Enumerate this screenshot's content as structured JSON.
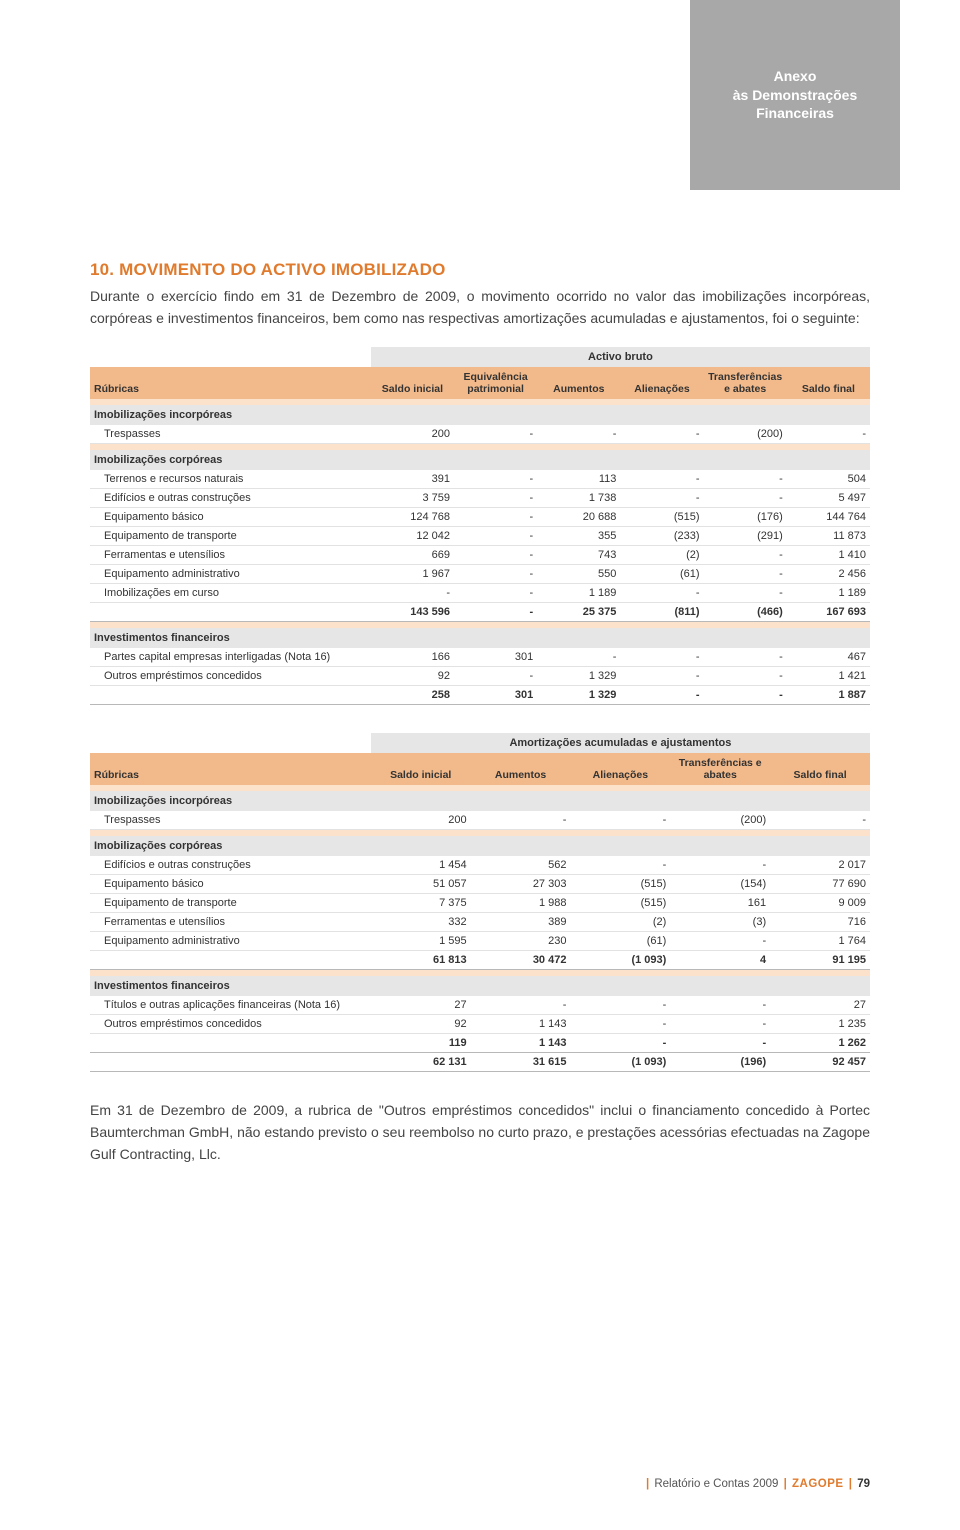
{
  "header": {
    "line1": "Anexo",
    "line2": "às Demonstrações",
    "line3": "Financeiras"
  },
  "section": {
    "title": "10. MOVIMENTO DO ACTIVO IMOBILIZADO",
    "intro": "Durante o exercício findo em 31 de Dezembro de 2009, o movimento ocorrido no valor das imobilizações incorpóreas, corpóreas e investimentos financeiros, bem como nas respectivas amortizações acumuladas e ajustamentos, foi o seguinte:"
  },
  "table1": {
    "banner": "Activo bruto",
    "columns": [
      "Rúbricas",
      "Saldo inicial",
      "Equivalência patrimonial",
      "Aumentos",
      "Alienações",
      "Transferências e abates",
      "Saldo final"
    ],
    "groups": [
      {
        "title": "Imobilizações incorpóreas",
        "rows": [
          {
            "label": "Trespasses",
            "cells": [
              "200",
              "-",
              "-",
              "-",
              "(200)",
              "-"
            ]
          }
        ]
      },
      {
        "title": "Imobilizações corpóreas",
        "rows": [
          {
            "label": "Terrenos e recursos naturais",
            "cells": [
              "391",
              "-",
              "113",
              "-",
              "-",
              "504"
            ]
          },
          {
            "label": "Edifícios e outras construções",
            "cells": [
              "3 759",
              "-",
              "1 738",
              "-",
              "-",
              "5 497"
            ]
          },
          {
            "label": "Equipamento básico",
            "cells": [
              "124 768",
              "-",
              "20 688",
              "(515)",
              "(176)",
              "144 764"
            ]
          },
          {
            "label": "Equipamento de transporte",
            "cells": [
              "12 042",
              "-",
              "355",
              "(233)",
              "(291)",
              "11 873"
            ]
          },
          {
            "label": "Ferramentas e utensílios",
            "cells": [
              "669",
              "-",
              "743",
              "(2)",
              "-",
              "1 410"
            ]
          },
          {
            "label": "Equipamento administrativo",
            "cells": [
              "1 967",
              "-",
              "550",
              "(61)",
              "-",
              "2 456"
            ]
          },
          {
            "label": "Imobilizações em curso",
            "cells": [
              "-",
              "-",
              "1 189",
              "-",
              "-",
              "1 189"
            ]
          }
        ],
        "subtotal": {
          "label": "",
          "cells": [
            "143 596",
            "-",
            "25 375",
            "(811)",
            "(466)",
            "167 693"
          ]
        }
      },
      {
        "title": "Investimentos financeiros",
        "rows": [
          {
            "label": "Partes capital empresas interligadas (Nota 16)",
            "cells": [
              "166",
              "301",
              "-",
              "-",
              "-",
              "467"
            ]
          },
          {
            "label": "Outros empréstimos concedidos",
            "cells": [
              "92",
              "-",
              "1 329",
              "-",
              "-",
              "1 421"
            ]
          }
        ],
        "subtotal": {
          "label": "",
          "cells": [
            "258",
            "301",
            "1 329",
            "-",
            "-",
            "1 887"
          ]
        }
      }
    ]
  },
  "table2": {
    "banner": "Amortizações acumuladas e ajustamentos",
    "columns": [
      "Rúbricas",
      "Saldo inicial",
      "Aumentos",
      "Alienações",
      "Transferências e abates",
      "Saldo final"
    ],
    "groups": [
      {
        "title": "Imobilizações incorpóreas",
        "rows": [
          {
            "label": "Trespasses",
            "cells": [
              "200",
              "-",
              "-",
              "(200)",
              "-"
            ]
          }
        ]
      },
      {
        "title": "Imobilizações corpóreas",
        "rows": [
          {
            "label": "Edifícios e outras construções",
            "cells": [
              "1 454",
              "562",
              "-",
              "-",
              "2 017"
            ]
          },
          {
            "label": "Equipamento básico",
            "cells": [
              "51 057",
              "27 303",
              "(515)",
              "(154)",
              "77 690"
            ]
          },
          {
            "label": "Equipamento de transporte",
            "cells": [
              "7 375",
              "1 988",
              "(515)",
              "161",
              "9 009"
            ]
          },
          {
            "label": "Ferramentas e utensílios",
            "cells": [
              "332",
              "389",
              "(2)",
              "(3)",
              "716"
            ]
          },
          {
            "label": "Equipamento administrativo",
            "cells": [
              "1 595",
              "230",
              "(61)",
              "-",
              "1 764"
            ]
          }
        ],
        "subtotal": {
          "label": "",
          "cells": [
            "61 813",
            "30 472",
            "(1 093)",
            "4",
            "91 195"
          ]
        }
      },
      {
        "title": "Investimentos financeiros",
        "rows": [
          {
            "label": "Títulos e outras aplicações financeiras (Nota 16)",
            "cells": [
              "27",
              "-",
              "-",
              "-",
              "27"
            ]
          },
          {
            "label": "Outros empréstimos concedidos",
            "cells": [
              "92",
              "1 143",
              "-",
              "-",
              "1 235"
            ]
          }
        ],
        "subtotal": {
          "label": "",
          "cells": [
            "119",
            "1 143",
            "-",
            "-",
            "1 262"
          ]
        },
        "grandtotal": {
          "label": "",
          "cells": [
            "62 131",
            "31 615",
            "(1 093)",
            "(196)",
            "92 457"
          ]
        }
      }
    ]
  },
  "closing": {
    "text": "Em 31 de Dezembro de 2009, a rubrica de \"Outros empréstimos concedidos\" inclui o financiamento concedido à Portec Baumterchman GmbH, não estando previsto o seu reembolso no curto prazo, e prestações acessórias efectuadas na Zagope Gulf Contracting, Llc."
  },
  "footer": {
    "report": "Relatório e Contas 2009",
    "brand": "ZAGOPE",
    "page": "79"
  },
  "style": {
    "accent": "#e07b2e",
    "header_bg": "#a8a8a8",
    "band_light": "#fce1cb",
    "band_head": "#f2b98a",
    "grey": "#e6e6e6",
    "body_font_size_pt": 14,
    "table_font_size_pt": 11
  }
}
